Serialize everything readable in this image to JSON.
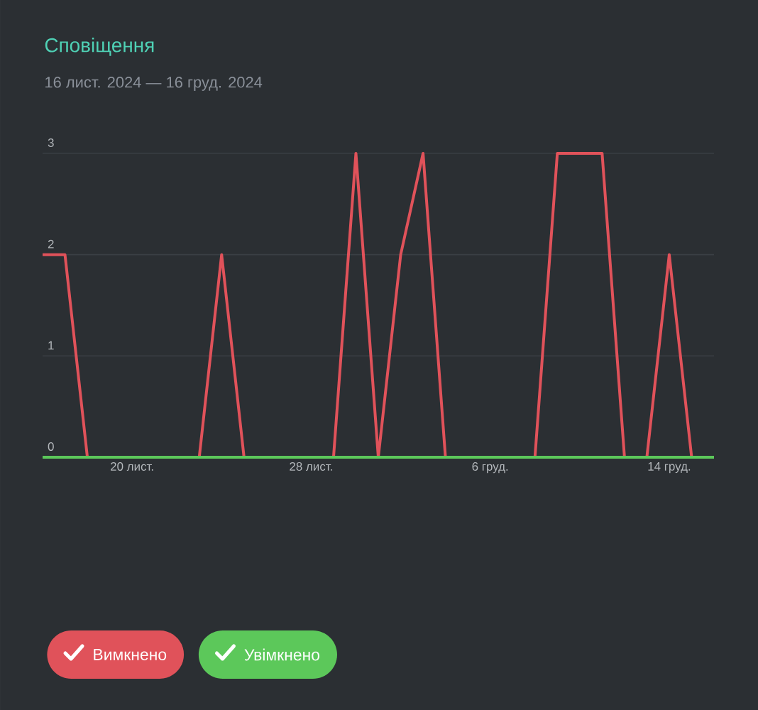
{
  "chart_data": {
    "type": "line",
    "title": "Сповіщення",
    "subtitle": "16 лист. 2024 — 16 груд. 2024",
    "x": [
      "2024-11-16",
      "2024-11-17",
      "2024-11-18",
      "2024-11-19",
      "2024-11-20",
      "2024-11-21",
      "2024-11-22",
      "2024-11-23",
      "2024-11-24",
      "2024-11-25",
      "2024-11-26",
      "2024-11-27",
      "2024-11-28",
      "2024-11-29",
      "2024-11-30",
      "2024-12-01",
      "2024-12-02",
      "2024-12-03",
      "2024-12-04",
      "2024-12-05",
      "2024-12-06",
      "2024-12-07",
      "2024-12-08",
      "2024-12-09",
      "2024-12-10",
      "2024-12-11",
      "2024-12-12",
      "2024-12-13",
      "2024-12-14",
      "2024-12-15",
      "2024-12-16"
    ],
    "series": [
      {
        "name": "Вимкнено",
        "color": "#e0525a",
        "values": [
          2,
          2,
          0,
          null,
          null,
          null,
          null,
          0,
          2,
          0,
          null,
          null,
          null,
          0,
          3,
          0,
          2,
          3,
          0,
          null,
          null,
          null,
          0,
          3,
          3,
          3,
          0,
          0,
          2,
          0,
          null
        ]
      },
      {
        "name": "Увімкнено",
        "color": "#5cc85a",
        "values": [
          0,
          0,
          0,
          0,
          0,
          0,
          0,
          0,
          0,
          0,
          0,
          0,
          0,
          0,
          0,
          0,
          0,
          0,
          0,
          0,
          0,
          0,
          0,
          0,
          0,
          0,
          0,
          0,
          0,
          0,
          0
        ]
      }
    ],
    "xlim": [
      "2024-11-16",
      "2024-12-16"
    ],
    "xticks": [
      {
        "value": "2024-11-20",
        "label": "20 лист."
      },
      {
        "value": "2024-11-28",
        "label": "28 лист."
      },
      {
        "value": "2024-12-06",
        "label": "6 груд."
      },
      {
        "value": "2024-12-14",
        "label": "14 груд."
      }
    ],
    "ylim": [
      0,
      3
    ],
    "yticks": [
      0,
      1,
      2,
      3
    ],
    "grid": "y",
    "legend": "bottom"
  }
}
